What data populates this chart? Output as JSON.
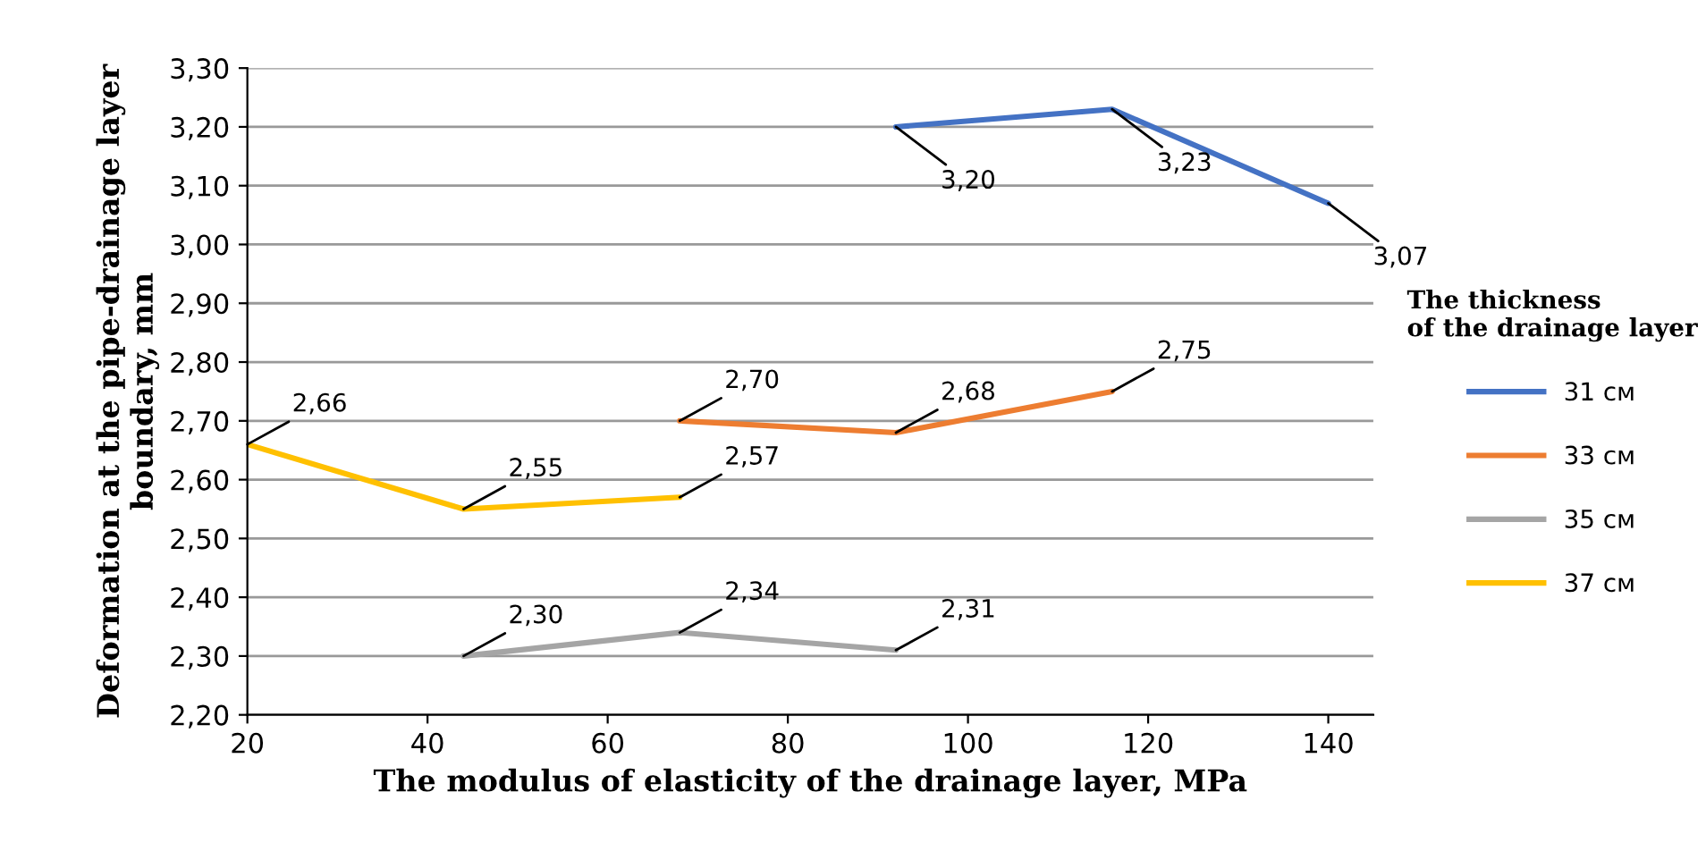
{
  "chart_data": {
    "type": "line",
    "xlabel": "The modulus of elasticity of the drainage layer, MPa",
    "ylabel": "Deformation at the pipe-drainage layer\nboundary, mm",
    "legend_title": "The thickness\nof the drainage layer",
    "legend": "right",
    "grid": "y",
    "line_style": "solid",
    "xlim": [
      20,
      145
    ],
    "xticks": [
      20,
      40,
      60,
      80,
      100,
      120,
      140
    ],
    "ylim": [
      2.2,
      3.3
    ],
    "yticks": [
      {
        "value": 2.2,
        "label": "2,20"
      },
      {
        "value": 2.3,
        "label": "2,30"
      },
      {
        "value": 2.4,
        "label": "2,40"
      },
      {
        "value": 2.5,
        "label": "2,50"
      },
      {
        "value": 2.6,
        "label": "2,60"
      },
      {
        "value": 2.7,
        "label": "2,70"
      },
      {
        "value": 2.8,
        "label": "2,80"
      },
      {
        "value": 2.9,
        "label": "2,90"
      },
      {
        "value": 3.0,
        "label": "3,00"
      },
      {
        "value": 3.1,
        "label": "3,10"
      },
      {
        "value": 3.2,
        "label": "3,20"
      },
      {
        "value": 3.3,
        "label": "3,30"
      }
    ],
    "series": [
      {
        "name": "31 см",
        "color": "#4472c4",
        "x": [
          92,
          116,
          140
        ],
        "values": [
          3.2,
          3.23,
          3.07
        ],
        "value_labels": [
          "3,20",
          "3,23",
          "3,07"
        ]
      },
      {
        "name": "33 см",
        "color": "#ed7d31",
        "x": [
          68,
          92,
          116
        ],
        "values": [
          2.7,
          2.68,
          2.75
        ],
        "value_labels": [
          "2,70",
          "2,68",
          "2,75"
        ]
      },
      {
        "name": "35 см",
        "color": "#a5a5a5",
        "x": [
          44,
          68,
          92
        ],
        "values": [
          2.3,
          2.34,
          2.31
        ],
        "value_labels": [
          "2,30",
          "2,34",
          "2,31"
        ]
      },
      {
        "name": "37 см",
        "color": "#ffc000",
        "x": [
          20,
          44,
          68
        ],
        "values": [
          2.66,
          2.55,
          2.57
        ],
        "value_labels": [
          "2,66",
          "2,55",
          "2,57"
        ]
      }
    ]
  }
}
